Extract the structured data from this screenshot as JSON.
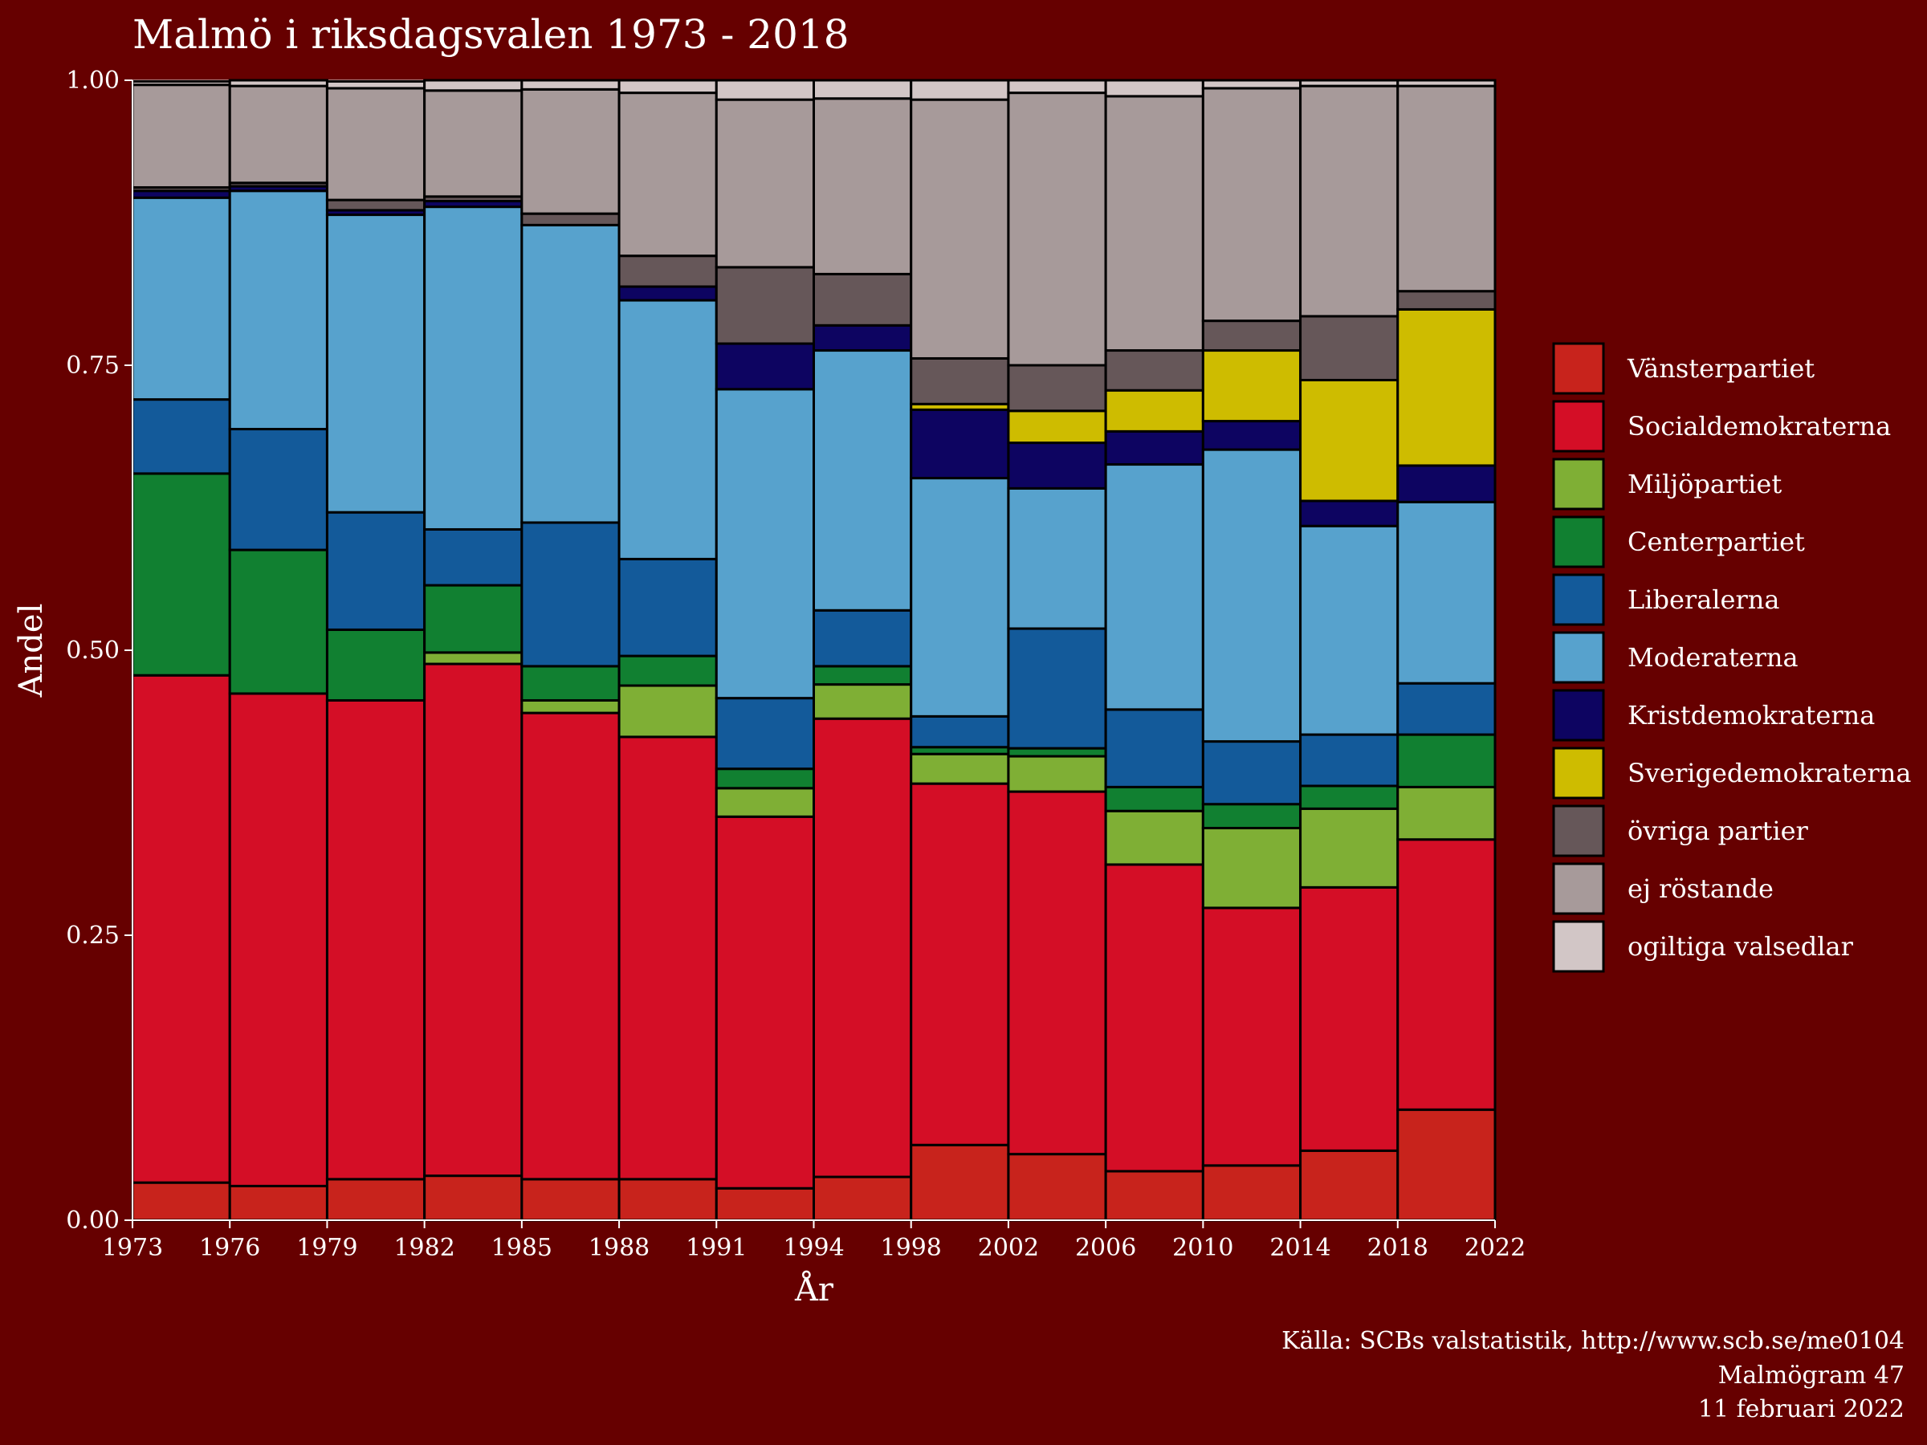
{
  "chart_data": {
    "type": "bar",
    "stacked": true,
    "title": "Malmö i riksdagsvalen 1973 - 2018",
    "xlabel": "År",
    "ylabel": "Andel",
    "ylim": [
      0,
      1
    ],
    "yticks": [
      "0.00",
      "0.25",
      "0.50",
      "0.75",
      "1.00"
    ],
    "xticks": [
      "1973",
      "1976",
      "1979",
      "1982",
      "1985",
      "1988",
      "1991",
      "1994",
      "1998",
      "2002",
      "2006",
      "2010",
      "2014",
      "2018",
      "2022"
    ],
    "grid": true,
    "legend_position": "right",
    "bars": [
      {
        "x0": 1973,
        "x1": 1976
      },
      {
        "x0": 1976,
        "x1": 1979
      },
      {
        "x0": 1979,
        "x1": 1982
      },
      {
        "x0": 1982,
        "x1": 1985
      },
      {
        "x0": 1985,
        "x1": 1988
      },
      {
        "x0": 1988,
        "x1": 1991
      },
      {
        "x0": 1991,
        "x1": 1994
      },
      {
        "x0": 1994,
        "x1": 1998
      },
      {
        "x0": 1998,
        "x1": 2002
      },
      {
        "x0": 2002,
        "x1": 2006
      },
      {
        "x0": 2006,
        "x1": 2010
      },
      {
        "x0": 2010,
        "x1": 2014
      },
      {
        "x0": 2014,
        "x1": 2018
      },
      {
        "x0": 2018,
        "x1": 2022
      }
    ],
    "series": [
      {
        "name": "Vänsterpartiet",
        "color": "#C8231C",
        "values": [
          0.033,
          0.03,
          0.036,
          0.039,
          0.036,
          0.036,
          0.028,
          0.038,
          0.066,
          0.058,
          0.043,
          0.048,
          0.061,
          0.097
        ]
      },
      {
        "name": "Socialdemokraterna",
        "color": "#D40E26",
        "values": [
          0.445,
          0.432,
          0.42,
          0.449,
          0.409,
          0.388,
          0.326,
          0.402,
          0.317,
          0.318,
          0.269,
          0.226,
          0.231,
          0.237
        ]
      },
      {
        "name": "Miljöpartiet",
        "color": "#7FAF35",
        "values": [
          0.0,
          0.0,
          0.0,
          0.01,
          0.011,
          0.045,
          0.025,
          0.03,
          0.026,
          0.031,
          0.047,
          0.07,
          0.069,
          0.046
        ]
      },
      {
        "name": "Centerpartiet",
        "color": "#118031",
        "values": [
          0.177,
          0.126,
          0.062,
          0.059,
          0.03,
          0.026,
          0.017,
          0.016,
          0.006,
          0.007,
          0.021,
          0.021,
          0.02,
          0.046
        ]
      },
      {
        "name": "Liberalerna",
        "color": "#135A9A",
        "values": [
          0.065,
          0.106,
          0.103,
          0.049,
          0.126,
          0.085,
          0.062,
          0.049,
          0.027,
          0.105,
          0.068,
          0.055,
          0.045,
          0.045
        ]
      },
      {
        "name": "Moderaterna",
        "color": "#57A2CD",
        "values": [
          0.177,
          0.209,
          0.261,
          0.283,
          0.261,
          0.227,
          0.271,
          0.228,
          0.209,
          0.123,
          0.215,
          0.256,
          0.183,
          0.159
        ]
      },
      {
        "name": "Kristdemokraterna",
        "color": "#0D0461",
        "values": [
          0.006,
          0.004,
          0.004,
          0.005,
          0.0,
          0.012,
          0.04,
          0.022,
          0.06,
          0.04,
          0.029,
          0.025,
          0.022,
          0.032
        ]
      },
      {
        "name": "Sverigedemokraterna",
        "color": "#CEBC00",
        "values": [
          0.0,
          0.0,
          0.0,
          0.0,
          0.0,
          0.0,
          0.0,
          0.0,
          0.005,
          0.028,
          0.036,
          0.062,
          0.106,
          0.137
        ]
      },
      {
        "name": "övriga partier",
        "color": "#665759",
        "values": [
          0.003,
          0.003,
          0.009,
          0.004,
          0.01,
          0.027,
          0.067,
          0.045,
          0.04,
          0.04,
          0.035,
          0.026,
          0.056,
          0.016
        ]
      },
      {
        "name": "ej röstande",
        "color": "#A79A9A",
        "values": [
          0.09,
          0.085,
          0.098,
          0.093,
          0.109,
          0.143,
          0.147,
          0.154,
          0.227,
          0.239,
          0.223,
          0.204,
          0.202,
          0.18
        ]
      },
      {
        "name": "ogiltiga valsedlar",
        "color": "#D2C6C6",
        "values": [
          0.003,
          0.005,
          0.006,
          0.009,
          0.008,
          0.011,
          0.017,
          0.016,
          0.017,
          0.011,
          0.014,
          0.007,
          0.005,
          0.005
        ]
      }
    ]
  },
  "caption": {
    "source": "Källa: SCBs valstatistik, http://www.scb.se/me0104",
    "series_name": "Malmögram 47",
    "date": "11 februari 2022"
  }
}
